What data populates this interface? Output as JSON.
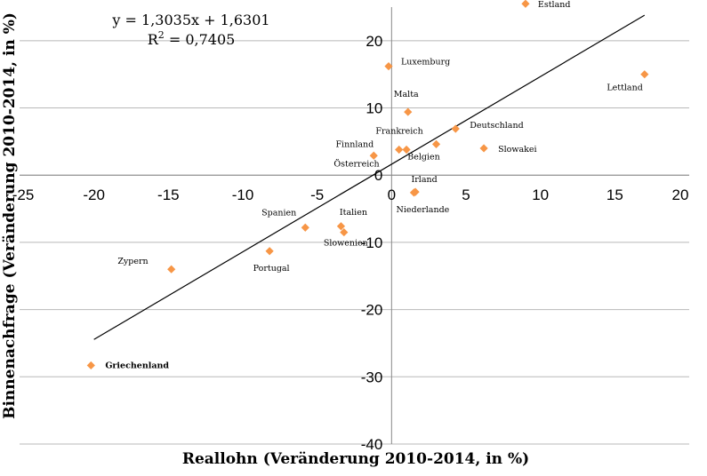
{
  "chart_data": {
    "type": "scatter",
    "xlabel": "Reallohn (Veränderung 2010-2014, in %)",
    "ylabel": "Binnenachfrage (Veränderung 2010-2014, in %)",
    "xlim": [
      -25,
      20
    ],
    "ylim": [
      -40,
      25
    ],
    "x_ticks": [
      "-25",
      "-20",
      "-15",
      "-10",
      "-5",
      "0",
      "5",
      "10",
      "15",
      "20"
    ],
    "y_ticks": [
      "-40",
      "-30",
      "-20",
      "-10",
      "0",
      "10",
      "20"
    ],
    "grid": "horizontal",
    "marker_color": "#f79646",
    "highlight_color": "#c00000",
    "trendline": {
      "equation": "y = 1,3035x + 1,6301",
      "r2_prefix": "R",
      "r2_exp": "2",
      "r2_value": " = 0,7405",
      "slope": 1.3035,
      "intercept": 1.6301,
      "x_range": [
        -20.0,
        17.0
      ]
    },
    "points": [
      {
        "name": "Estland",
        "x": 9.0,
        "y": 25.5
      },
      {
        "name": "Luxemburg",
        "x": -0.2,
        "y": 16.2
      },
      {
        "name": "Lettland",
        "x": 17.0,
        "y": 15.0
      },
      {
        "name": "Malta",
        "x": 1.1,
        "y": 9.4
      },
      {
        "name": "Deutschland",
        "x": 4.3,
        "y": 6.9
      },
      {
        "name": "Frankreich",
        "x": 1.0,
        "y": 3.8
      },
      {
        "name": "Slowakei",
        "x": 6.2,
        "y": 4.0
      },
      {
        "name": "Belgien",
        "x": 3.0,
        "y": 4.6
      },
      {
        "name": "Finnland",
        "x": -1.2,
        "y": 2.9
      },
      {
        "name": "Österreich",
        "x": 0.5,
        "y": 3.8
      },
      {
        "name": "Irland",
        "x": 1.6,
        "y": -2.5
      },
      {
        "name": "Niederlande",
        "x": 1.5,
        "y": -2.6
      },
      {
        "name": "Spanien",
        "x": -5.8,
        "y": -7.8
      },
      {
        "name": "Italien",
        "x": -3.4,
        "y": -7.6
      },
      {
        "name": "Slowenien",
        "x": -3.2,
        "y": -8.5
      },
      {
        "name": "Portugal",
        "x": -8.2,
        "y": -11.3
      },
      {
        "name": "Zypern",
        "x": -14.8,
        "y": -14.0
      },
      {
        "name": "Griechenland",
        "x": -20.2,
        "y": -28.3,
        "highlight": true
      }
    ]
  }
}
